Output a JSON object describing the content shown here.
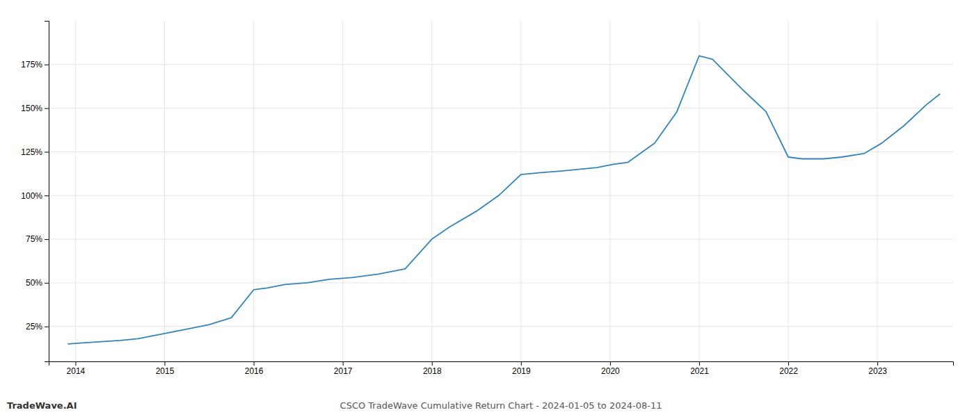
{
  "chart_data": {
    "type": "line",
    "title": "CSCO TradeWave Cumulative Return Chart - 2024-01-05 to 2024-08-11",
    "annotations": [
      "TradeWave.AI"
    ],
    "x": [
      2013.92,
      2014.05,
      2014.2,
      2014.5,
      2014.7,
      2015.0,
      2015.2,
      2015.5,
      2015.75,
      2016.0,
      2016.15,
      2016.35,
      2016.6,
      2016.85,
      2017.1,
      2017.4,
      2017.7,
      2018.0,
      2018.2,
      2018.5,
      2018.75,
      2019.0,
      2019.2,
      2019.45,
      2019.65,
      2019.85,
      2020.05,
      2020.2,
      2020.5,
      2020.75,
      2021.0,
      2021.15,
      2021.5,
      2021.75,
      2022.0,
      2022.15,
      2022.4,
      2022.6,
      2022.85,
      2023.05,
      2023.3,
      2023.55,
      2023.7
    ],
    "values": [
      15,
      15.5,
      16,
      17,
      18,
      21,
      23,
      26,
      30,
      46,
      47,
      49,
      50,
      52,
      53,
      55,
      58,
      75,
      82,
      91,
      100,
      112,
      113,
      114,
      115,
      116,
      118,
      119,
      130,
      148,
      180,
      178,
      160,
      148,
      122,
      121,
      121,
      122,
      124,
      130,
      140,
      152,
      158
    ],
    "color": "#2e86c1",
    "xlim": [
      2013.7,
      2023.85
    ],
    "ylim": [
      5,
      200
    ],
    "xticks": [
      2014,
      2015,
      2016,
      2017,
      2018,
      2019,
      2020,
      2021,
      2022,
      2023
    ],
    "yticks": [
      {
        "value": 25,
        "label": "25%"
      },
      {
        "value": 50,
        "label": "50%"
      },
      {
        "value": 75,
        "label": "75%"
      },
      {
        "value": 100,
        "label": "100%"
      },
      {
        "value": 125,
        "label": "125%"
      },
      {
        "value": 150,
        "label": "150%"
      },
      {
        "value": 175,
        "label": "175%"
      }
    ],
    "grid": true
  }
}
